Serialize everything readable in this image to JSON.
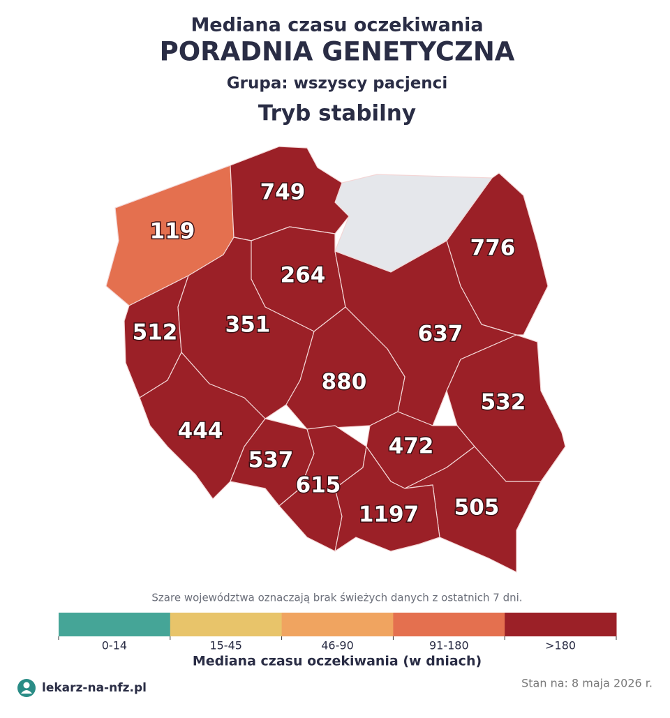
{
  "header": {
    "title": "Mediana czasu oczekiwania",
    "clinic": "PORADNIA GENETYCZNA",
    "group": "Grupa: wszyscy pacjenci",
    "mode": "Tryb stabilny"
  },
  "map": {
    "regions": [
      {
        "value": 119,
        "color": "#e4704f"
      },
      {
        "value": 749,
        "color": "#9b2027"
      },
      {
        "value": 776,
        "color": "#9b2027"
      },
      {
        "value": 264,
        "color": "#9b2027"
      },
      {
        "value": 512,
        "color": "#9b2027"
      },
      {
        "value": 351,
        "color": "#9b2027"
      },
      {
        "value": 637,
        "color": "#9b2027"
      },
      {
        "value": 880,
        "color": "#9b2027"
      },
      {
        "value": 532,
        "color": "#9b2027"
      },
      {
        "value": 444,
        "color": "#9b2027"
      },
      {
        "value": 537,
        "color": "#9b2027"
      },
      {
        "value": 472,
        "color": "#9b2027"
      },
      {
        "value": 615,
        "color": "#9b2027"
      },
      {
        "value": 505,
        "color": "#9b2027"
      },
      {
        "value": 1197,
        "color": "#9b2027"
      }
    ],
    "note": "Szare województwa oznaczają brak świeżych danych z ostatnich 7 dni."
  },
  "legend": {
    "bins": [
      {
        "label": "0-14",
        "color": "#45a597"
      },
      {
        "label": "15-45",
        "color": "#e8c46a"
      },
      {
        "label": "46-90",
        "color": "#f0a460"
      },
      {
        "label": "91-180",
        "color": "#e4704f"
      },
      {
        "label": ">180",
        "color": "#9b2027"
      }
    ],
    "title": "Mediana czasu oczekiwania (w dniach)"
  },
  "footer": {
    "brand": "lekarz-na-nfz.pl",
    "date": "Stan na: 8 maja 2026 r."
  }
}
